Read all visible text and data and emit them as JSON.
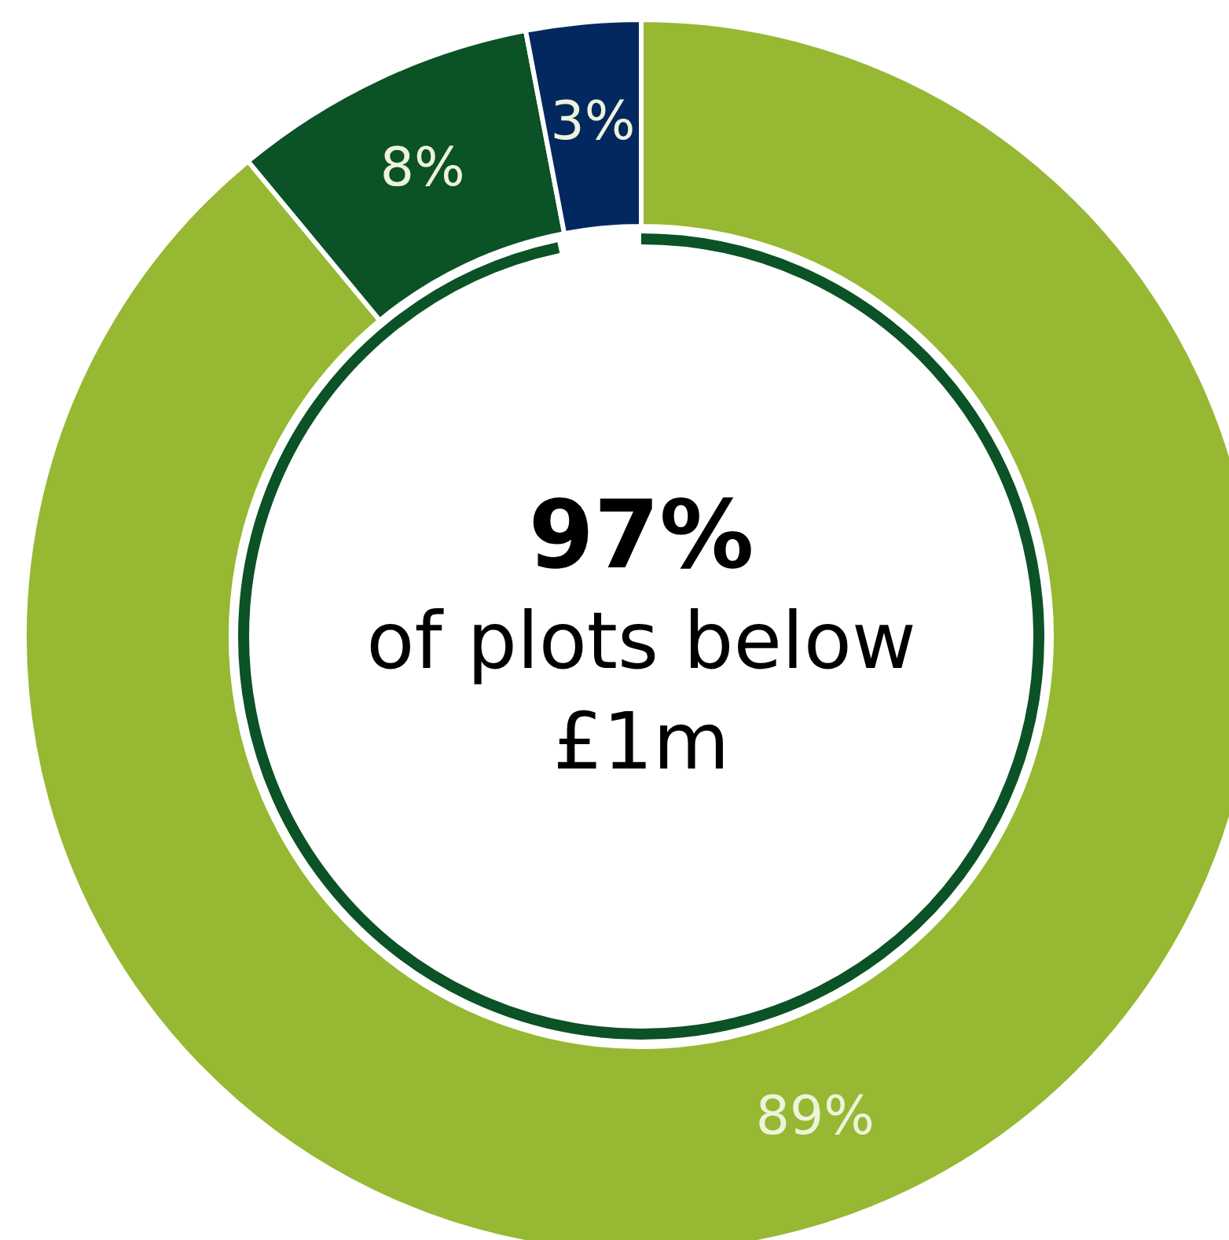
{
  "chart_data": {
    "type": "donut",
    "categories": [
      null,
      null,
      null
    ],
    "values": [
      89,
      8,
      3
    ],
    "colors": [
      "#97b832",
      "#0b5226",
      "#03285f"
    ],
    "value_labels": [
      "89%",
      "8%",
      "3%"
    ],
    "annotations": [
      "97%",
      "of plots below £1m"
    ]
  }
}
